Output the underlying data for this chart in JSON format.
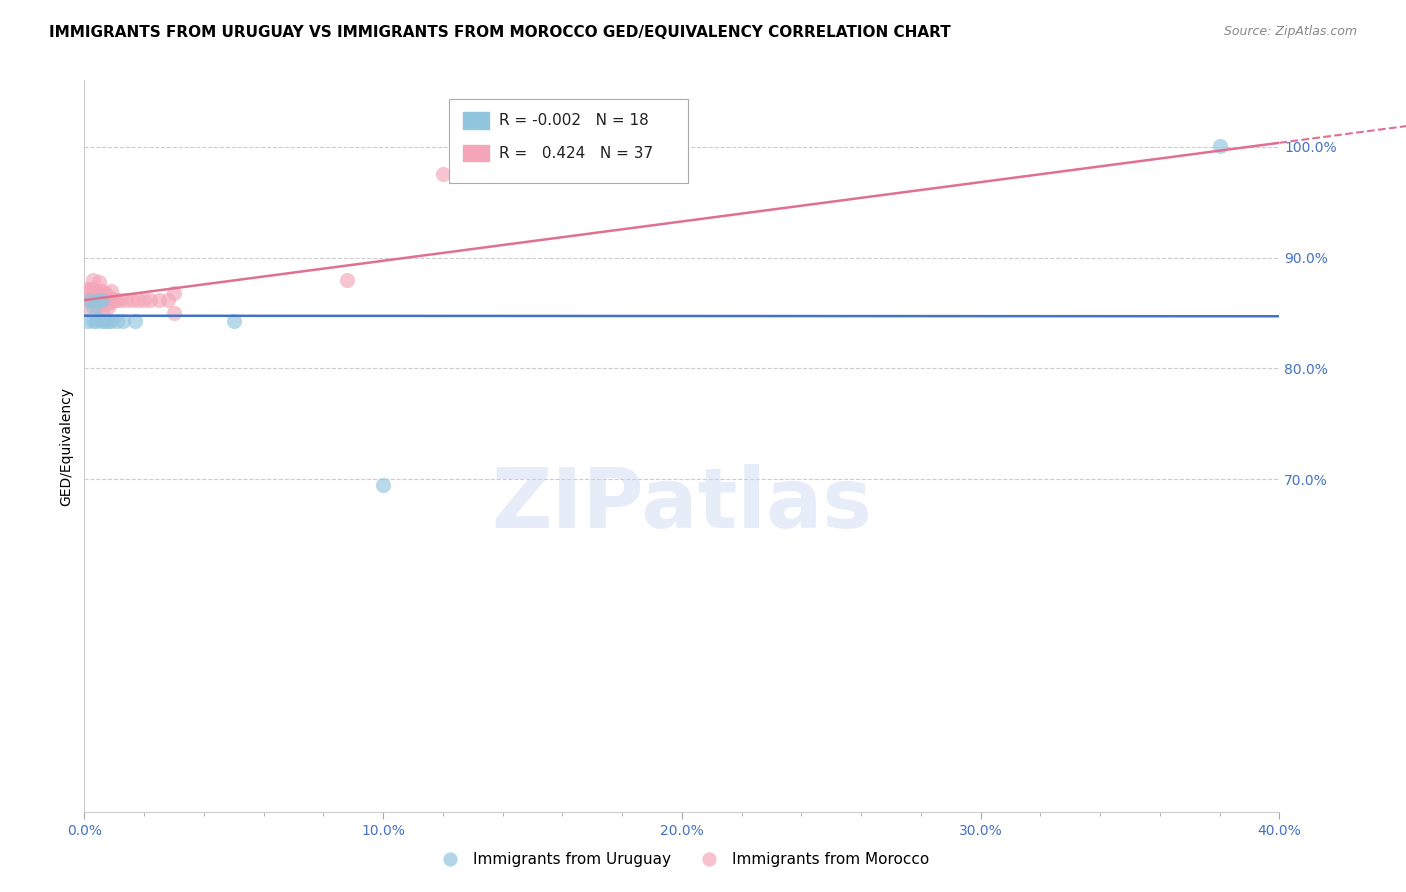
{
  "title": "IMMIGRANTS FROM URUGUAY VS IMMIGRANTS FROM MOROCCO GED/EQUIVALENCY CORRELATION CHART",
  "source": "Source: ZipAtlas.com",
  "ylabel": "GED/Equivalency",
  "xlim": [
    0.0,
    0.4
  ],
  "ylim": [
    0.4,
    1.06
  ],
  "xtick_labels": [
    "0.0%",
    "",
    "",
    "",
    "",
    "10.0%",
    "",
    "",
    "",
    "",
    "20.0%",
    "",
    "",
    "",
    "",
    "30.0%",
    "",
    "",
    "",
    "",
    "40.0%"
  ],
  "xtick_values": [
    0.0,
    0.02,
    0.04,
    0.06,
    0.08,
    0.1,
    0.12,
    0.14,
    0.16,
    0.18,
    0.2,
    0.22,
    0.24,
    0.26,
    0.28,
    0.3,
    0.32,
    0.34,
    0.36,
    0.38,
    0.4
  ],
  "xtick_major_labels": [
    "0.0%",
    "10.0%",
    "20.0%",
    "30.0%",
    "40.0%"
  ],
  "xtick_major_values": [
    0.0,
    0.1,
    0.2,
    0.3,
    0.4
  ],
  "ytick_labels": [
    "70.0%",
    "80.0%",
    "90.0%",
    "100.0%"
  ],
  "ytick_values": [
    0.7,
    0.8,
    0.9,
    1.0
  ],
  "uruguay_color": "#92c5de",
  "morocco_color": "#f4a6b8",
  "uruguay_line_color": "#4472c4",
  "morocco_line_color": "#e07090",
  "uruguay_R": "-0.002",
  "uruguay_N": "18",
  "morocco_R": "0.424",
  "morocco_N": "37",
  "uruguay_label": "Immigrants from Uruguay",
  "morocco_label": "Immigrants from Morocco",
  "watermark": "ZIPatlas",
  "uruguay_x": [
    0.001,
    0.002,
    0.003,
    0.003,
    0.004,
    0.005,
    0.005,
    0.006,
    0.006,
    0.007,
    0.008,
    0.009,
    0.011,
    0.013,
    0.017,
    0.05,
    0.1,
    0.38
  ],
  "uruguay_y": [
    0.843,
    0.862,
    0.855,
    0.843,
    0.843,
    0.862,
    0.845,
    0.862,
    0.843,
    0.843,
    0.843,
    0.843,
    0.843,
    0.843,
    0.843,
    0.843,
    0.695,
    1.001
  ],
  "morocco_x": [
    0.001,
    0.001,
    0.001,
    0.002,
    0.002,
    0.003,
    0.003,
    0.003,
    0.004,
    0.004,
    0.004,
    0.005,
    0.005,
    0.005,
    0.006,
    0.006,
    0.006,
    0.007,
    0.007,
    0.008,
    0.008,
    0.009,
    0.009,
    0.01,
    0.011,
    0.012,
    0.014,
    0.016,
    0.018,
    0.02,
    0.022,
    0.025,
    0.028,
    0.03,
    0.03,
    0.088,
    0.12
  ],
  "morocco_y": [
    0.862,
    0.872,
    0.855,
    0.872,
    0.862,
    0.88,
    0.862,
    0.872,
    0.87,
    0.862,
    0.855,
    0.878,
    0.868,
    0.858,
    0.87,
    0.86,
    0.85,
    0.868,
    0.858,
    0.865,
    0.855,
    0.87,
    0.86,
    0.862,
    0.862,
    0.862,
    0.862,
    0.862,
    0.862,
    0.862,
    0.862,
    0.862,
    0.862,
    0.868,
    0.85,
    0.88,
    0.975
  ],
  "background_color": "#ffffff",
  "grid_color": "#cccccc",
  "title_fontsize": 11,
  "tick_fontsize": 10,
  "marker_size": 10
}
